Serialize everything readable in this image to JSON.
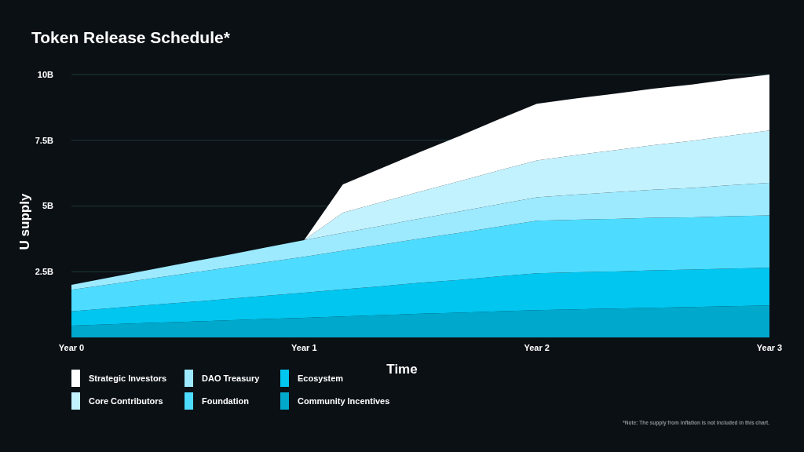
{
  "chart_data": {
    "type": "area",
    "title": "Token Release Schedule*",
    "xlabel": "Time",
    "ylabel": "U supply",
    "stacked": true,
    "categories": [
      "Year 0",
      null,
      null,
      null,
      null,
      null,
      "Year 1",
      null,
      null,
      null,
      null,
      null,
      "Year 2",
      null,
      null,
      null,
      null,
      null,
      "Year 3"
    ],
    "ylim": [
      0,
      10
    ],
    "yticks": [
      {
        "value": 2.5,
        "label": "2.5B"
      },
      {
        "value": 5,
        "label": "5B"
      },
      {
        "value": 7.5,
        "label": "7.5B"
      },
      {
        "value": 10,
        "label": "10B"
      }
    ],
    "grid": "y",
    "legend": "bottom",
    "series": [
      {
        "name": "Community Incentives",
        "color": "#00a8cc",
        "values": [
          0.45,
          0.5,
          0.55,
          0.6,
          0.65,
          0.7,
          0.75,
          0.8,
          0.85,
          0.9,
          0.94,
          0.99,
          1.04,
          1.07,
          1.1,
          1.13,
          1.16,
          1.19,
          1.22
        ]
      },
      {
        "name": "Ecosystem",
        "color": "#00c6f0",
        "values": [
          0.54,
          0.61,
          0.68,
          0.74,
          0.81,
          0.88,
          0.95,
          1.03,
          1.1,
          1.18,
          1.25,
          1.33,
          1.4,
          1.41,
          1.41,
          1.42,
          1.42,
          1.43,
          1.43
        ]
      },
      {
        "name": "Foundation",
        "color": "#4ddcff",
        "values": [
          0.82,
          0.91,
          1.0,
          1.1,
          1.19,
          1.28,
          1.37,
          1.47,
          1.58,
          1.68,
          1.79,
          1.89,
          2.0,
          2.0,
          2.0,
          2.0,
          1.99,
          1.99,
          1.99
        ]
      },
      {
        "name": "DAO Treasury",
        "color": "#9deaff",
        "values": [
          0.19,
          0.26,
          0.34,
          0.41,
          0.48,
          0.56,
          0.63,
          0.68,
          0.72,
          0.76,
          0.81,
          0.85,
          0.89,
          0.95,
          1.01,
          1.07,
          1.12,
          1.18,
          1.24
        ]
      },
      {
        "name": "Core Contributors",
        "color": "#c3f2ff",
        "values": [
          0,
          0,
          0,
          0,
          0,
          0,
          0,
          0.77,
          0.9,
          1.03,
          1.15,
          1.28,
          1.4,
          1.5,
          1.6,
          1.69,
          1.79,
          1.89,
          1.99
        ]
      },
      {
        "name": "Strategic Investors",
        "color": "#ffffff",
        "values": [
          0,
          0,
          0,
          0,
          0,
          0,
          0,
          1.07,
          1.29,
          1.51,
          1.72,
          1.94,
          2.16,
          2.16,
          2.15,
          2.15,
          2.14,
          2.14,
          2.13
        ]
      }
    ],
    "annotations": [
      "*Note: The supply from inflation is not included in this chart."
    ]
  }
}
